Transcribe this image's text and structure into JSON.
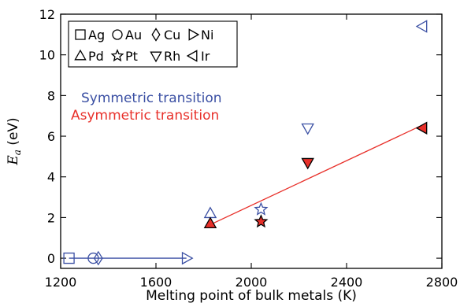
{
  "chart_data": {
    "type": "scatter",
    "xlabel": "Melting point of bulk metals (K)",
    "ylabel": {
      "main": "E",
      "sub": "a",
      "unit": " (eV)"
    },
    "xlim": [
      1200,
      2800
    ],
    "ylim": [
      -0.5,
      12
    ],
    "xticks": [
      "1200",
      "1600",
      "2000",
      "2400",
      "2800"
    ],
    "yticks": [
      "0",
      "2",
      "4",
      "6",
      "8",
      "10",
      "12"
    ],
    "legend_entries": [
      {
        "label": "Ag",
        "marker": "square"
      },
      {
        "label": "Au",
        "marker": "circle"
      },
      {
        "label": "Cu",
        "marker": "diamond"
      },
      {
        "label": "Ni",
        "marker": "triangle-right"
      },
      {
        "label": "Pd",
        "marker": "triangle-up"
      },
      {
        "label": "Pt",
        "marker": "star"
      },
      {
        "label": "Rh",
        "marker": "triangle-down"
      },
      {
        "label": "Ir",
        "marker": "triangle-left"
      }
    ],
    "legend_placement": "top-left",
    "series": [
      {
        "name": "Symmetric transition",
        "color": "#3a4fa3",
        "filled": false,
        "points": [
          {
            "metal": "Ag",
            "marker": "square",
            "x": 1235,
            "y": 0
          },
          {
            "metal": "Au",
            "marker": "circle",
            "x": 1337,
            "y": 0
          },
          {
            "metal": "Cu",
            "marker": "diamond",
            "x": 1358,
            "y": 0
          },
          {
            "metal": "Ni",
            "marker": "triangle-right",
            "x": 1728,
            "y": 0
          },
          {
            "metal": "Pd",
            "marker": "triangle-up",
            "x": 1828,
            "y": 2.2
          },
          {
            "metal": "Pt",
            "marker": "star",
            "x": 2041,
            "y": 2.4
          },
          {
            "metal": "Rh",
            "marker": "triangle-down",
            "x": 2237,
            "y": 6.4
          },
          {
            "metal": "Ir",
            "marker": "triangle-left",
            "x": 2719,
            "y": 11.4
          }
        ],
        "fit_line": [
          [
            1235,
            0
          ],
          [
            1728,
            0
          ]
        ]
      },
      {
        "name": "Asymmetric transition",
        "color": "#e8302a",
        "filled": true,
        "points": [
          {
            "metal": "Pd",
            "marker": "triangle-up",
            "x": 1828,
            "y": 1.7
          },
          {
            "metal": "Pt",
            "marker": "star",
            "x": 2041,
            "y": 1.8
          },
          {
            "metal": "Rh",
            "marker": "triangle-down",
            "x": 2237,
            "y": 4.7
          },
          {
            "metal": "Ir",
            "marker": "triangle-left",
            "x": 2719,
            "y": 6.4
          }
        ],
        "fit_line": [
          [
            1828,
            1.65
          ],
          [
            2719,
            6.55
          ]
        ]
      }
    ],
    "grid": false,
    "colors": {
      "symmetric": "#3a4fa3",
      "asymmetric": "#e8302a",
      "axis": "#000000"
    }
  }
}
